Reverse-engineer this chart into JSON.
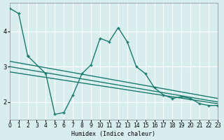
{
  "xlabel": "Humidex (Indice chaleur)",
  "bg_color": "#d8eeee",
  "grid_color": "#ffffff",
  "line_color": "#1a7a6e",
  "xlim": [
    0,
    23
  ],
  "ylim": [
    1.5,
    4.8
  ],
  "yticks": [
    2,
    3,
    4
  ],
  "xticks": [
    0,
    1,
    2,
    3,
    4,
    5,
    6,
    7,
    8,
    9,
    10,
    11,
    12,
    13,
    14,
    15,
    16,
    17,
    18,
    19,
    20,
    21,
    22,
    23
  ],
  "line1_x": [
    0,
    1,
    2
  ],
  "line1_y": [
    4.65,
    4.5,
    3.3
  ],
  "line2_x": [
    2,
    4,
    5,
    6,
    7,
    8,
    9,
    10,
    11,
    12,
    13,
    14,
    15,
    16,
    17,
    18,
    19,
    20,
    21,
    22,
    23
  ],
  "line2_y": [
    3.3,
    2.8,
    1.65,
    1.7,
    2.2,
    2.8,
    3.05,
    3.8,
    3.7,
    4.1,
    3.7,
    3.0,
    2.8,
    2.4,
    2.2,
    2.1,
    2.15,
    2.1,
    1.95,
    1.9,
    1.9
  ],
  "line3_x": [
    0,
    23
  ],
  "line3_y": [
    3.15,
    2.1
  ],
  "line4_x": [
    0,
    23
  ],
  "line4_y": [
    3.0,
    2.0
  ],
  "line5_x": [
    0,
    23
  ],
  "line5_y": [
    2.85,
    1.95
  ]
}
